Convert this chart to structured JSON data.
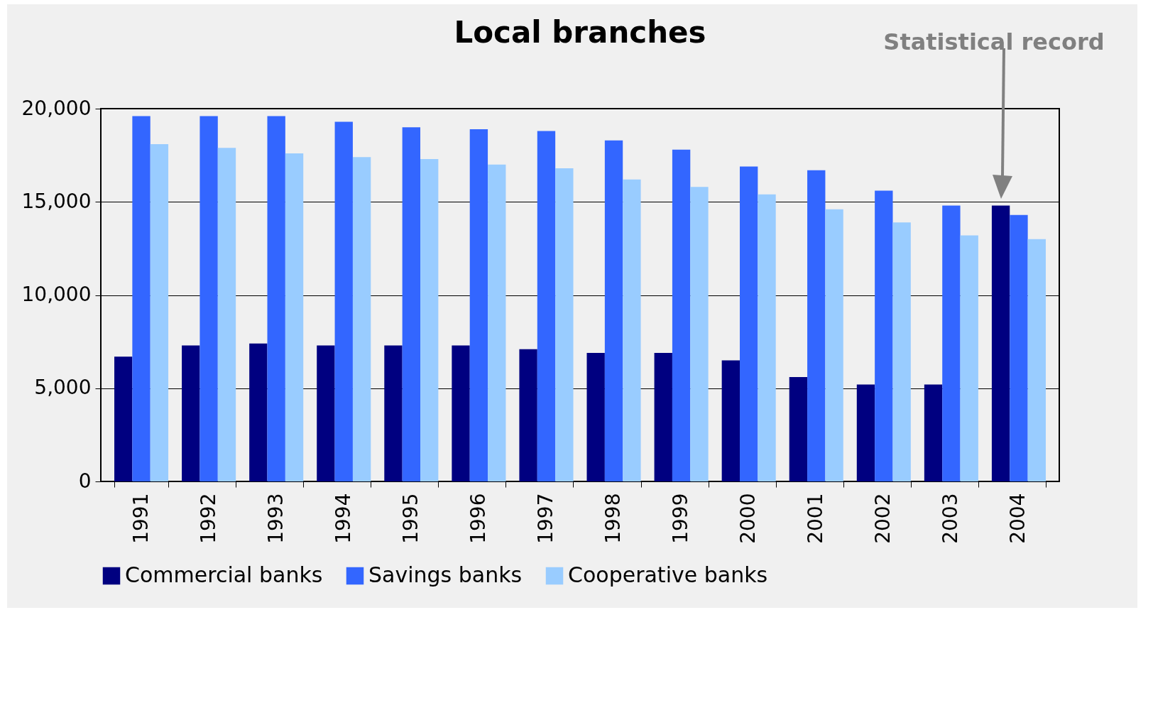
{
  "chart_data": {
    "type": "bar",
    "title": "Local branches",
    "categories": [
      "1991",
      "1992",
      "1993",
      "1994",
      "1995",
      "1996",
      "1997",
      "1998",
      "1999",
      "2000",
      "2001",
      "2002",
      "2003",
      "2004"
    ],
    "series": [
      {
        "name": "Commercial banks",
        "color": "#000080",
        "values": [
          6700,
          7300,
          7400,
          7300,
          7300,
          7300,
          7100,
          6900,
          6900,
          6500,
          5600,
          5200,
          5200,
          14800
        ]
      },
      {
        "name": "Savings banks",
        "color": "#3366ff",
        "values": [
          19600,
          19600,
          19600,
          19300,
          19000,
          18900,
          18800,
          18300,
          17800,
          16900,
          16700,
          15600,
          14800,
          14300
        ]
      },
      {
        "name": "Cooperative banks",
        "color": "#99ccff",
        "values": [
          18100,
          17900,
          17600,
          17400,
          17300,
          17000,
          16800,
          16200,
          15800,
          15400,
          14600,
          13900,
          13200,
          13000
        ]
      }
    ],
    "ylim": [
      0,
      20000
    ],
    "yticks": [
      {
        "value": 0,
        "label": "0"
      },
      {
        "value": 5000,
        "label": "5,000"
      },
      {
        "value": 10000,
        "label": "10,000"
      },
      {
        "value": 15000,
        "label": "15,000"
      },
      {
        "value": 20000,
        "label": "20,000"
      }
    ],
    "grid": "y",
    "legend": "bottom",
    "annotations": [
      "Statistical record"
    ]
  }
}
